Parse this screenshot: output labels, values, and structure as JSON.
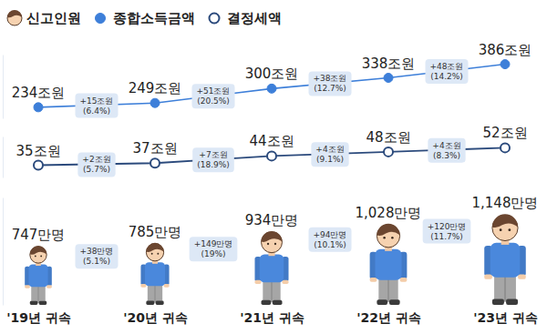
{
  "chart_data": {
    "type": "line",
    "legend": "top-left",
    "tick_labels": "x",
    "data_labels": true,
    "categories": [
      "'19년 귀속",
      "'20년 귀속",
      "'21년 귀속",
      "'22년 귀속",
      "'23년 귀속"
    ],
    "series": [
      {
        "name": "신고인원",
        "type": "pictograph",
        "color": "#4a88dc",
        "marker": "person",
        "ylim": [
          0,
          1250
        ],
        "values": [
          747,
          785,
          934,
          1028,
          1148
        ],
        "value_labels": [
          "747만명",
          "785만명",
          "934만명",
          "1,028만명",
          "1,148만명"
        ],
        "change_labels": [
          [
            "+38만명",
            "(5.1%)"
          ],
          [
            "+149만명",
            "(19%)"
          ],
          [
            "+94만명",
            "(10.1%)"
          ],
          [
            "+120만명",
            "(11.7%)"
          ]
        ]
      },
      {
        "name": "종합소득금액",
        "type": "line",
        "color": "#3d7fd9",
        "marker": "circle",
        "ylim": [
          195,
          420
        ],
        "values": [
          234,
          249,
          300,
          338,
          386
        ],
        "value_labels": [
          "234조원",
          "249조원",
          "300조원",
          "338조원",
          "386조원"
        ],
        "change_labels": [
          [
            "+15조원",
            "(6.4%)"
          ],
          [
            "+51조원",
            "(20.5%)"
          ],
          [
            "+38조원",
            "(12.7%)"
          ],
          [
            "+48조원",
            "(14.2%)"
          ]
        ]
      },
      {
        "name": "결정세액",
        "type": "line",
        "color": "#2b4a7c",
        "marker": "circle-open",
        "ylim": [
          23,
          63
        ],
        "values": [
          35,
          37,
          44,
          48,
          52
        ],
        "value_labels": [
          "35조원",
          "37조원",
          "44조원",
          "48조원",
          "52조원"
        ],
        "change_labels": [
          [
            "+2조원",
            "(5.7%)"
          ],
          [
            "+7조원",
            "(18.9%)"
          ],
          [
            "+4조원",
            "(9.1%)"
          ],
          [
            "+4조원",
            "(8.3%)"
          ]
        ]
      }
    ]
  }
}
